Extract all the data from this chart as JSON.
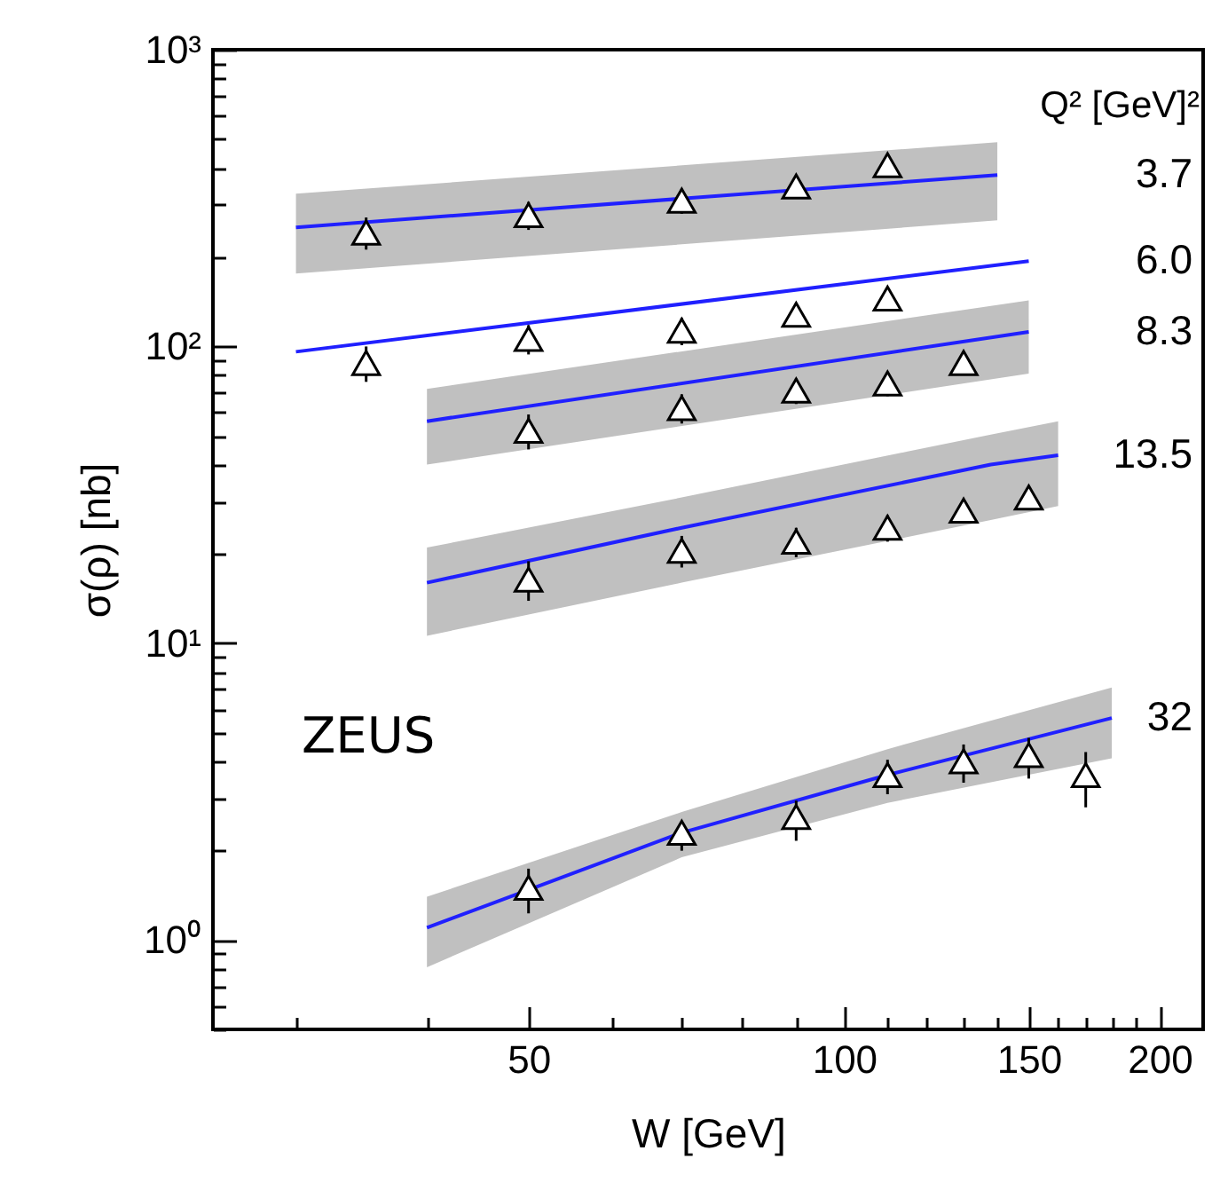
{
  "chart_data": {
    "type": "scatter",
    "xlabel": "W [GeV]",
    "ylabel": "σ(ρ) [nb]",
    "legend_title": "Q² [GeV]²",
    "log": "xy",
    "xlim": [
      25,
      220
    ],
    "ylim": [
      0.5,
      1000
    ],
    "xticks": [
      {
        "value": 30,
        "label": null
      },
      {
        "value": 40,
        "label": null
      },
      50,
      {
        "value": 60,
        "label": null
      },
      {
        "value": 70,
        "label": null
      },
      {
        "value": 80,
        "label": null
      },
      {
        "value": 90,
        "label": null
      },
      100,
      {
        "value": 110,
        "label": null
      },
      {
        "value": 120,
        "label": null
      },
      {
        "value": 130,
        "label": null
      },
      {
        "value": 140,
        "label": null
      },
      150,
      {
        "value": 160,
        "label": null
      },
      {
        "value": 170,
        "label": null
      },
      {
        "value": 180,
        "label": null
      },
      {
        "value": 190,
        "label": null
      },
      200
    ],
    "yticks": [
      {
        "value": 0.5,
        "label": null
      },
      {
        "value": 0.6,
        "label": null
      },
      {
        "value": 0.7,
        "label": null
      },
      {
        "value": 0.8,
        "label": null
      },
      {
        "value": 0.9,
        "label": null
      },
      {
        "value": 1,
        "label": "10⁰"
      },
      {
        "value": 2,
        "label": null
      },
      {
        "value": 3,
        "label": null
      },
      {
        "value": 4,
        "label": null
      },
      {
        "value": 5,
        "label": null
      },
      {
        "value": 6,
        "label": null
      },
      {
        "value": 7,
        "label": null
      },
      {
        "value": 8,
        "label": null
      },
      {
        "value": 9,
        "label": null
      },
      {
        "value": 10,
        "label": "10¹"
      },
      {
        "value": 20,
        "label": null
      },
      {
        "value": 30,
        "label": null
      },
      {
        "value": 40,
        "label": null
      },
      {
        "value": 50,
        "label": null
      },
      {
        "value": 60,
        "label": null
      },
      {
        "value": 70,
        "label": null
      },
      {
        "value": 80,
        "label": null
      },
      {
        "value": 90,
        "label": null
      },
      {
        "value": 100,
        "label": "10²"
      },
      {
        "value": 200,
        "label": null
      },
      {
        "value": 300,
        "label": null
      },
      {
        "value": 400,
        "label": null
      },
      {
        "value": 500,
        "label": null
      },
      {
        "value": 600,
        "label": null
      },
      {
        "value": 700,
        "label": null
      },
      {
        "value": 800,
        "label": null
      },
      {
        "value": 900,
        "label": null
      },
      {
        "value": 1000,
        "label": "10³"
      }
    ],
    "series": [
      {
        "type": "line",
        "name": "3.7",
        "color": "#2020ff",
        "x": [
          30,
          140
        ],
        "values": [
          252,
          378
        ],
        "lower": [
          176,
          266
        ],
        "upper": [
          327,
          488
        ]
      },
      {
        "type": "line",
        "name": "6.0",
        "color": "#2020ff",
        "x": [
          30,
          150
        ],
        "values": [
          96,
          194
        ]
      },
      {
        "type": "line",
        "name": "8.3",
        "color": "#2020ff",
        "x": [
          40,
          150
        ],
        "values": [
          56,
          112
        ],
        "lower": [
          40,
          81
        ],
        "upper": [
          72,
          143
        ]
      },
      {
        "type": "line",
        "name": "13.5",
        "color": "#2020ff",
        "x": [
          40,
          70,
          138,
          160
        ],
        "values": [
          16,
          24.5,
          40,
          43
        ],
        "lower": [
          10.6,
          16,
          26,
          29
        ],
        "upper": [
          21,
          31,
          50.5,
          56
        ]
      },
      {
        "type": "line",
        "name": "32",
        "color": "#2020ff",
        "x": [
          40,
          70,
          110,
          180
        ],
        "values": [
          1.1,
          2.3,
          3.6,
          5.6
        ],
        "lower": [
          0.81,
          1.9,
          2.9,
          4.1
        ],
        "upper": [
          1.4,
          2.7,
          4.4,
          7.1
        ]
      },
      {
        "marker": "triangle",
        "color": "#000000",
        "x": [
          35,
          50,
          70,
          90,
          110
        ],
        "values": [
          242,
          277,
          310,
          346,
          408
        ],
        "errors": [
          30,
          30,
          30,
          30,
          30
        ]
      },
      {
        "marker": "triangle",
        "color": "#000000",
        "x": [
          35,
          50,
          70,
          90,
          110
        ],
        "values": [
          88,
          106,
          113,
          128,
          145
        ],
        "errors": [
          12,
          12,
          12,
          12,
          12
        ]
      },
      {
        "marker": "triangle",
        "color": "#000000",
        "x": [
          50,
          70,
          90,
          110,
          130
        ],
        "values": [
          52,
          62,
          71,
          75,
          88
        ],
        "errors": [
          7,
          7,
          7,
          7,
          7
        ]
      },
      {
        "marker": "triangle",
        "color": "#000000",
        "x": [
          50,
          70,
          90,
          110,
          130,
          150
        ],
        "values": [
          16.4,
          20.5,
          22,
          24.5,
          28,
          31
        ],
        "errors": [
          2.5,
          2.5,
          2.5,
          2.5,
          2.5,
          2.5
        ]
      },
      {
        "marker": "triangle",
        "color": "#000000",
        "x": [
          50,
          70,
          90,
          110,
          130,
          150,
          170
        ],
        "values": [
          1.5,
          2.3,
          2.6,
          3.6,
          4.0,
          4.2,
          3.6
        ],
        "errors": [
          [
            1.23,
            1.74
          ],
          [
            2.0,
            2.46
          ],
          [
            2.16,
            2.95
          ],
          [
            3.1,
            4.05
          ],
          [
            3.39,
            4.56
          ],
          [
            3.5,
            4.8
          ],
          [
            2.8,
            4.3
          ]
        ]
      }
    ],
    "annotations": [
      "ZEUS"
    ]
  }
}
